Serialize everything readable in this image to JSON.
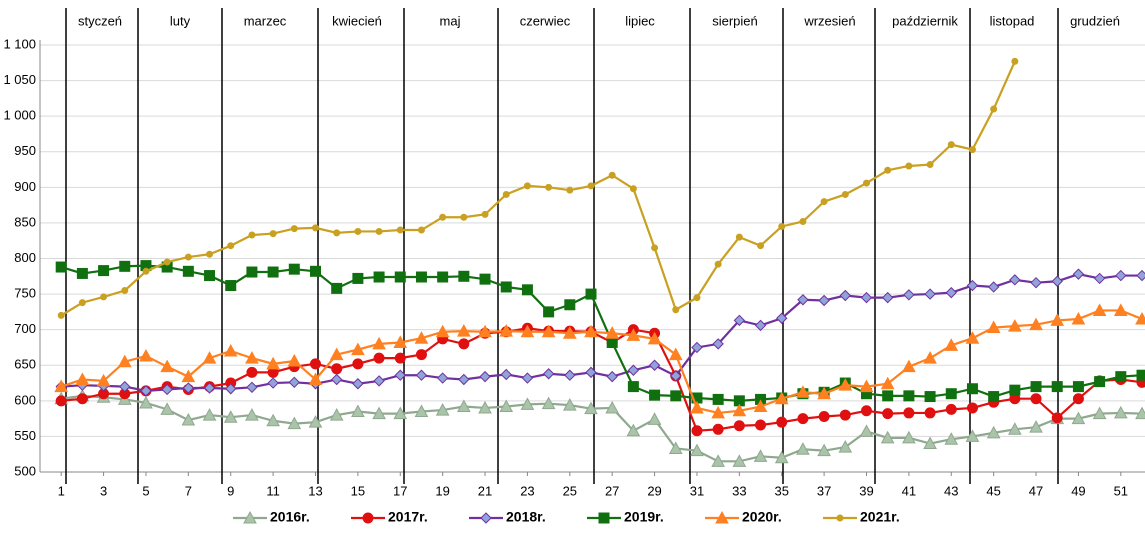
{
  "chart_data": {
    "type": "line",
    "months": [
      "styczeń",
      "luty",
      "marzec",
      "kwiecień",
      "maj",
      "czerwiec",
      "lipiec",
      "sierpień",
      "wrzesień",
      "październik",
      "listopad",
      "grudzień"
    ],
    "x": [
      1,
      2,
      3,
      4,
      5,
      6,
      7,
      8,
      9,
      10,
      11,
      12,
      13,
      14,
      15,
      16,
      17,
      18,
      19,
      20,
      21,
      22,
      23,
      24,
      25,
      26,
      27,
      28,
      29,
      30,
      31,
      32,
      33,
      34,
      35,
      36,
      37,
      38,
      39,
      40,
      41,
      42,
      43,
      44,
      45,
      46,
      47,
      48,
      49,
      50,
      51,
      52
    ],
    "xlim": [
      0,
      52
    ],
    "xticks": [
      1,
      3,
      5,
      7,
      9,
      11,
      13,
      15,
      17,
      19,
      21,
      23,
      25,
      27,
      29,
      31,
      33,
      35,
      37,
      39,
      41,
      43,
      45,
      47,
      49,
      51
    ],
    "ylim": [
      500,
      1100
    ],
    "yticks": [
      500,
      550,
      600,
      650,
      700,
      750,
      800,
      850,
      900,
      950,
      {
        "value": 1000,
        "label": "1 000"
      },
      {
        "value": 1050,
        "label": "1 050"
      },
      {
        "value": 1100,
        "label": "1 100"
      }
    ],
    "grid": true,
    "legend": "bottom",
    "series": [
      {
        "name": "2016r.",
        "color": "#8fa88f",
        "marker_color": "#a9c4a9",
        "marker": "triangle",
        "values": [
          603,
          607,
          605,
          602,
          597,
          588,
          573,
          580,
          577,
          580,
          572,
          568,
          570,
          580,
          585,
          582,
          582,
          585,
          587,
          592,
          590,
          592,
          595,
          596,
          594,
          589,
          590,
          558,
          574,
          533,
          530,
          515,
          515,
          522,
          520,
          532,
          530,
          535,
          557,
          548,
          548,
          540,
          546,
          550,
          555,
          560,
          563,
          575,
          575,
          582,
          583,
          582
        ]
      },
      {
        "name": "2017r.",
        "color": "#e01010",
        "marker_color": "#e01010",
        "marker": "circle",
        "values": [
          600,
          603,
          610,
          610,
          614,
          620,
          616,
          620,
          625,
          640,
          640,
          648,
          652,
          645,
          652,
          660,
          660,
          665,
          687,
          680,
          695,
          697,
          702,
          698,
          698,
          697,
          682,
          700,
          695,
          635,
          558,
          560,
          565,
          566,
          570,
          575,
          578,
          580,
          586,
          582,
          583,
          583,
          588,
          590,
          598,
          603,
          603,
          576,
          603,
          628,
          630,
          626
        ]
      },
      {
        "name": "2018r.",
        "color": "#7030a0",
        "marker_color": "#8fa4d8",
        "marker": "diamond",
        "values": [
          620,
          622,
          621,
          620,
          614,
          616,
          618,
          618,
          617,
          619,
          625,
          626,
          624,
          630,
          624,
          628,
          636,
          636,
          632,
          630,
          634,
          637,
          632,
          638,
          636,
          640,
          634,
          643,
          650,
          635,
          675,
          680,
          713,
          706,
          716,
          742,
          741,
          748,
          745,
          745,
          749,
          750,
          752,
          762,
          760,
          770,
          766,
          768,
          778,
          772,
          776,
          776
        ]
      },
      {
        "name": "2019r.",
        "color": "#107010",
        "marker_color": "#107010",
        "marker": "square",
        "values": [
          788,
          779,
          783,
          789,
          790,
          788,
          782,
          776,
          762,
          781,
          781,
          785,
          782,
          758,
          772,
          774,
          774,
          774,
          774,
          775,
          771,
          760,
          756,
          725,
          735,
          750,
          682,
          620,
          608,
          607,
          604,
          602,
          600,
          602,
          604,
          610,
          612,
          625,
          610,
          607,
          607,
          606,
          610,
          617,
          606,
          615,
          620,
          620,
          620,
          627,
          634,
          636
        ]
      },
      {
        "name": "2020r.",
        "color": "#ff8020",
        "marker_color": "#ff8020",
        "marker": "triangle",
        "values": [
          620,
          630,
          628,
          655,
          663,
          648,
          634,
          660,
          670,
          660,
          652,
          656,
          630,
          665,
          672,
          680,
          682,
          688,
          697,
          698,
          697,
          698,
          697,
          697,
          695,
          697,
          695,
          692,
          687,
          665,
          590,
          583,
          586,
          592,
          603,
          612,
          610,
          622,
          620,
          624,
          648,
          660,
          678,
          688,
          703,
          705,
          707,
          713,
          715,
          727,
          727,
          715
        ]
      },
      {
        "name": "2021r.",
        "color": "#c9a020",
        "marker_color": "#c9a020",
        "marker": "dot",
        "values": [
          720,
          738,
          746,
          755,
          782,
          795,
          802,
          806,
          818,
          833,
          835,
          842,
          843,
          836,
          838,
          838,
          840,
          840,
          858,
          858,
          862,
          890,
          902,
          900,
          896,
          902,
          917,
          898,
          815,
          728,
          745,
          792,
          830,
          818,
          845,
          852,
          880,
          890,
          906,
          924,
          930,
          932,
          960,
          953,
          1010,
          1077,
          null,
          null,
          null,
          null,
          null,
          null
        ]
      }
    ]
  }
}
